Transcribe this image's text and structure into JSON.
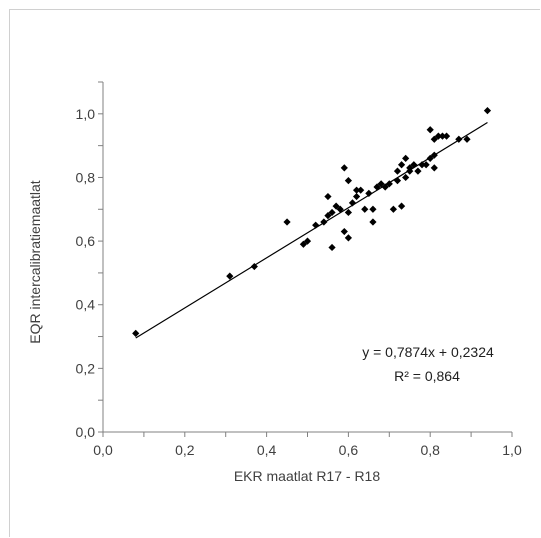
{
  "chart_data": {
    "type": "scatter",
    "title": "",
    "xlabel": "EKR maatlat R17 - R18",
    "ylabel": "EQR  intercalibratiemaatlat",
    "xlim": [
      0.0,
      1.0
    ],
    "ylim": [
      0.0,
      1.1
    ],
    "x_ticks": [
      "0,0",
      "0,2",
      "0,4",
      "0,6",
      "0,8",
      "1,0"
    ],
    "y_ticks": [
      "0,0",
      "0,2",
      "0,4",
      "0,6",
      "0,8",
      "1,0"
    ],
    "x_tick_values": [
      0.0,
      0.2,
      0.4,
      0.6,
      0.8,
      1.0
    ],
    "y_tick_values": [
      0.0,
      0.2,
      0.4,
      0.6,
      0.8,
      1.0
    ],
    "grid": false,
    "legend": "none",
    "marker_color": "#000000",
    "series": [
      {
        "points": [
          [
            0.08,
            0.31
          ],
          [
            0.31,
            0.49
          ],
          [
            0.37,
            0.52
          ],
          [
            0.45,
            0.66
          ],
          [
            0.49,
            0.59
          ],
          [
            0.5,
            0.6
          ],
          [
            0.52,
            0.65
          ],
          [
            0.54,
            0.66
          ],
          [
            0.55,
            0.68
          ],
          [
            0.55,
            0.74
          ],
          [
            0.56,
            0.58
          ],
          [
            0.56,
            0.69
          ],
          [
            0.57,
            0.71
          ],
          [
            0.58,
            0.7
          ],
          [
            0.59,
            0.83
          ],
          [
            0.59,
            0.63
          ],
          [
            0.6,
            0.61
          ],
          [
            0.6,
            0.69
          ],
          [
            0.6,
            0.79
          ],
          [
            0.61,
            0.72
          ],
          [
            0.62,
            0.76
          ],
          [
            0.62,
            0.74
          ],
          [
            0.63,
            0.76
          ],
          [
            0.64,
            0.7
          ],
          [
            0.65,
            0.75
          ],
          [
            0.66,
            0.7
          ],
          [
            0.66,
            0.66
          ],
          [
            0.67,
            0.77
          ],
          [
            0.68,
            0.78
          ],
          [
            0.69,
            0.77
          ],
          [
            0.7,
            0.78
          ],
          [
            0.71,
            0.7
          ],
          [
            0.72,
            0.79
          ],
          [
            0.72,
            0.82
          ],
          [
            0.73,
            0.71
          ],
          [
            0.73,
            0.84
          ],
          [
            0.74,
            0.86
          ],
          [
            0.74,
            0.8
          ],
          [
            0.75,
            0.83
          ],
          [
            0.75,
            0.82
          ],
          [
            0.76,
            0.84
          ],
          [
            0.77,
            0.82
          ],
          [
            0.78,
            0.84
          ],
          [
            0.79,
            0.84
          ],
          [
            0.8,
            0.86
          ],
          [
            0.8,
            0.95
          ],
          [
            0.81,
            0.87
          ],
          [
            0.81,
            0.83
          ],
          [
            0.81,
            0.92
          ],
          [
            0.82,
            0.93
          ],
          [
            0.83,
            0.93
          ],
          [
            0.84,
            0.93
          ],
          [
            0.87,
            0.92
          ],
          [
            0.89,
            0.92
          ],
          [
            0.94,
            1.01
          ]
        ]
      }
    ],
    "trendline": {
      "slope": 0.7874,
      "intercept": 0.2324,
      "x_range": [
        0.08,
        0.94
      ],
      "equation_label": "y = 0,7874x + 0,2324",
      "r2_label": "R² = 0,864"
    }
  }
}
